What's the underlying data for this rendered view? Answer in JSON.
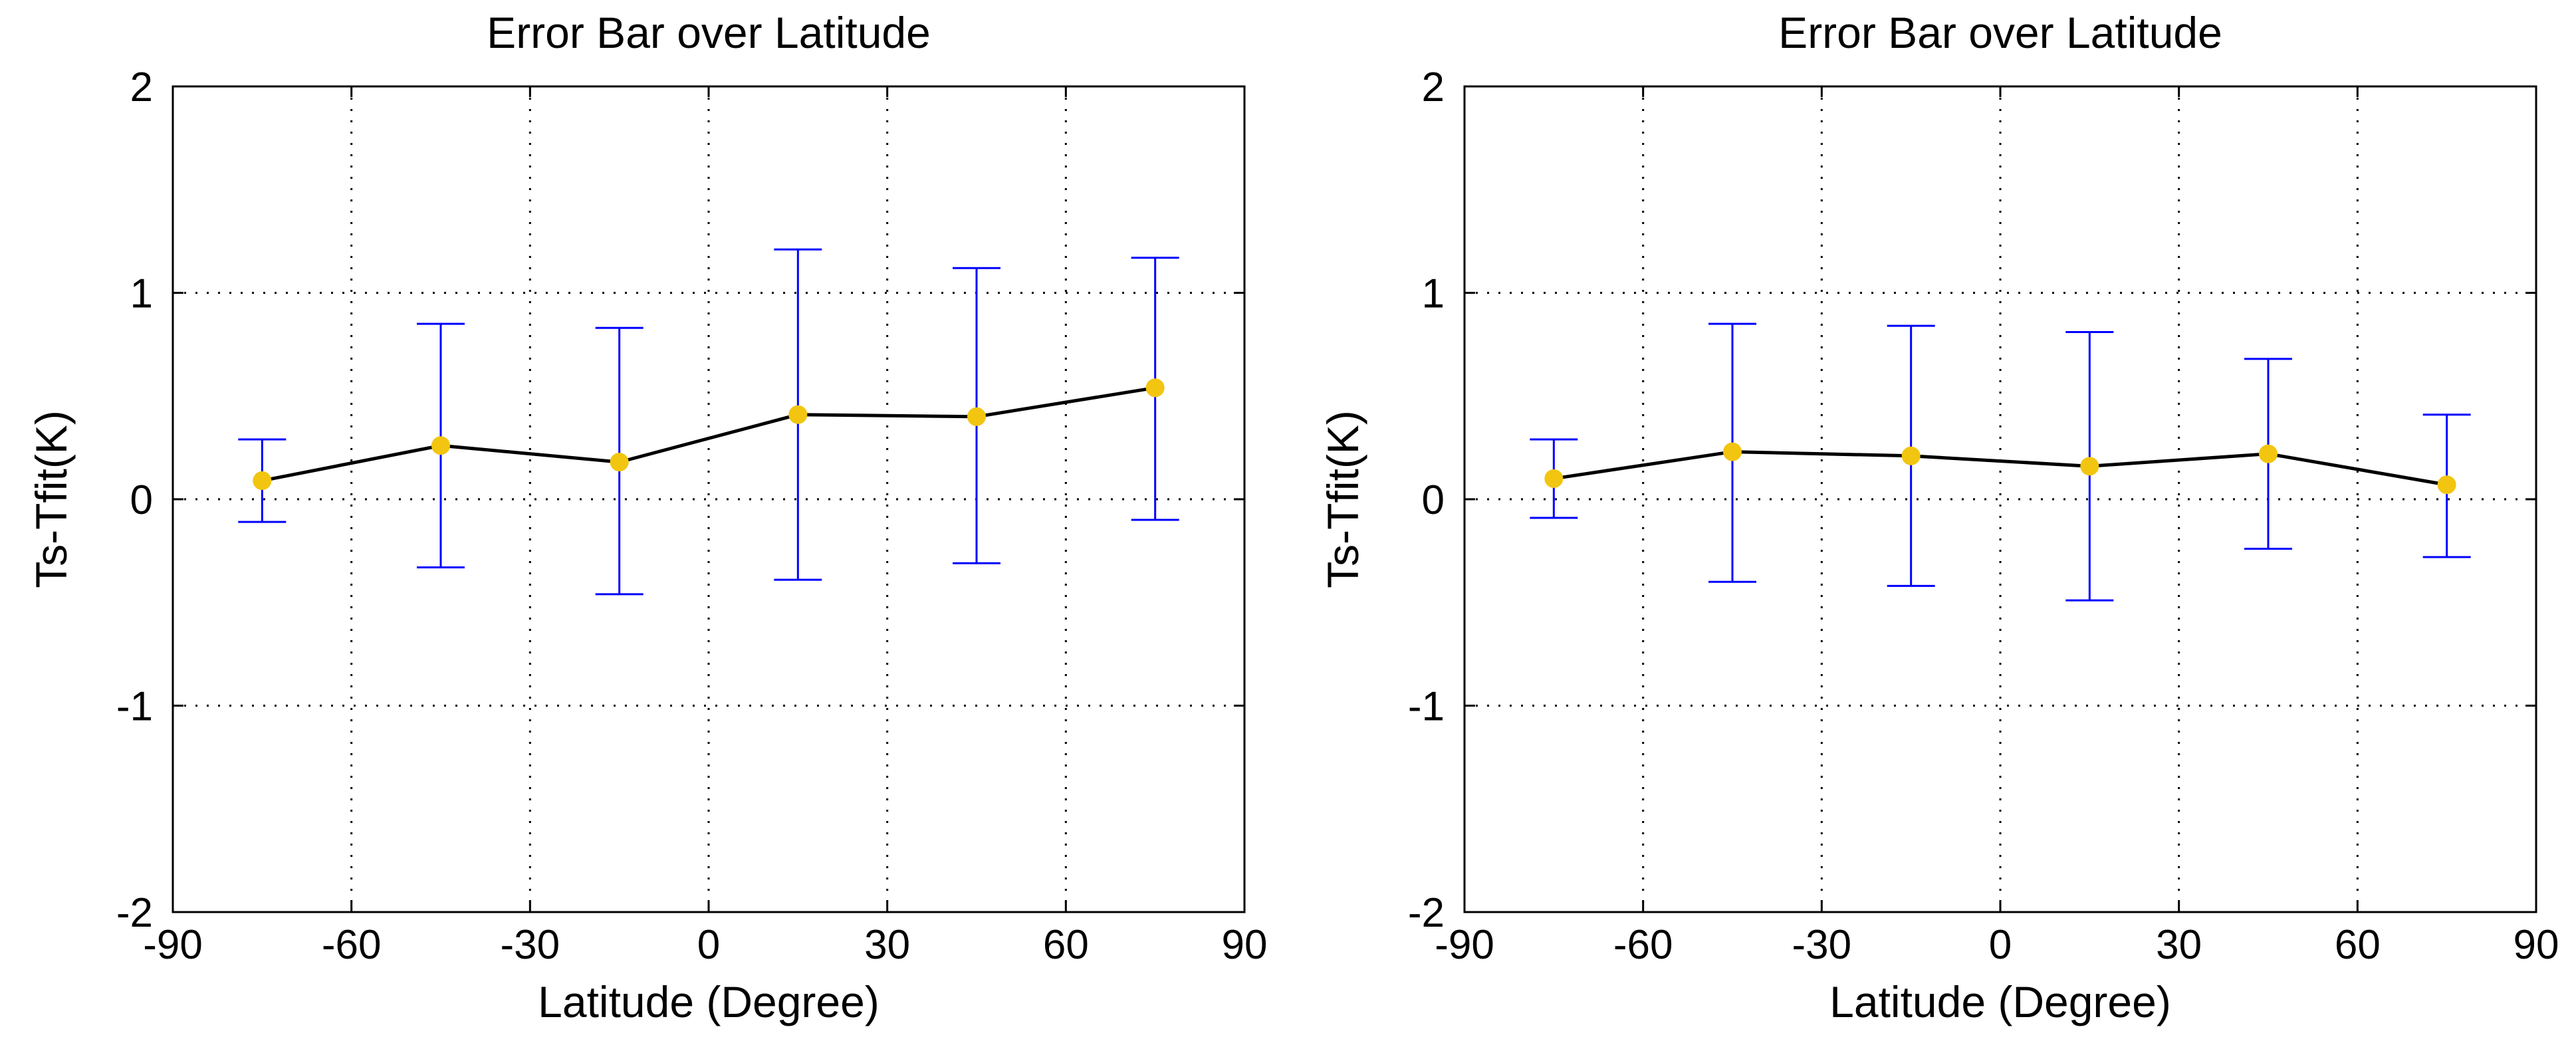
{
  "chart_data": [
    {
      "type": "line",
      "title": "Error Bar over Latitude",
      "xlabel": "Latitude (Degree)",
      "ylabel": "Ts-Tfit(K)",
      "xlim": [
        -90,
        90
      ],
      "ylim": [
        -2,
        2
      ],
      "xticks": [
        -90,
        -60,
        -30,
        0,
        30,
        60,
        90
      ],
      "yticks": [
        -2,
        -1,
        0,
        1,
        2
      ],
      "grid": true,
      "line_color": "#000000",
      "marker_color": "#f2c511",
      "errorbar_color": "#0000ff",
      "x": [
        -75,
        -45,
        -15,
        15,
        45,
        75
      ],
      "y": [
        0.09,
        0.26,
        0.18,
        0.41,
        0.4,
        0.54
      ],
      "err_low": [
        -0.11,
        -0.33,
        -0.46,
        -0.39,
        -0.31,
        -0.1
      ],
      "err_high": [
        0.29,
        0.85,
        0.83,
        1.21,
        1.12,
        1.17
      ]
    },
    {
      "type": "line",
      "title": "Error Bar over Latitude",
      "xlabel": "Latitude (Degree)",
      "ylabel": "Ts-Tfit(K)",
      "xlim": [
        -90,
        90
      ],
      "ylim": [
        -2,
        2
      ],
      "xticks": [
        -90,
        -60,
        -30,
        0,
        30,
        60,
        90
      ],
      "yticks": [
        -2,
        -1,
        0,
        1,
        2
      ],
      "grid": true,
      "line_color": "#000000",
      "marker_color": "#f2c511",
      "errorbar_color": "#0000ff",
      "x": [
        -75,
        -45,
        -15,
        15,
        45,
        75
      ],
      "y": [
        0.1,
        0.23,
        0.21,
        0.16,
        0.22,
        0.07
      ],
      "err_low": [
        -0.09,
        -0.4,
        -0.42,
        -0.49,
        -0.24,
        -0.28
      ],
      "err_high": [
        0.29,
        0.85,
        0.84,
        0.81,
        0.68,
        0.41
      ]
    }
  ]
}
